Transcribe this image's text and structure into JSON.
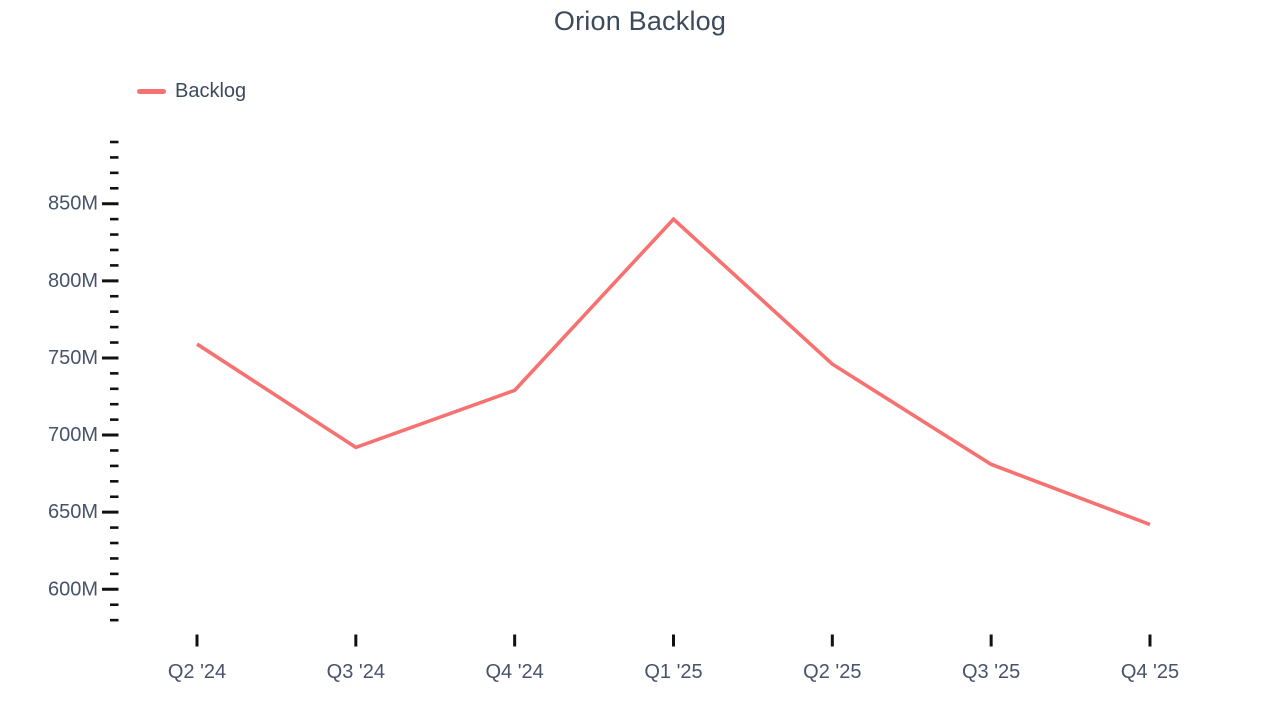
{
  "title": "Orion Backlog",
  "legend": {
    "items": [
      {
        "label": "Backlog",
        "color": "#F87171"
      }
    ]
  },
  "colors": {
    "line": "#F87171",
    "title_text": "#3D4A5E",
    "axis_text": "#47526B",
    "tick": "#111111",
    "background": "#FFFFFF"
  },
  "chart_data": {
    "type": "line",
    "title": "Orion Backlog",
    "categories": [
      "Q2 '24",
      "Q3 '24",
      "Q4 '24",
      "Q1 '25",
      "Q2 '25",
      "Q3 '25",
      "Q4 '25"
    ],
    "series": [
      {
        "name": "Backlog",
        "color": "#F87171",
        "values_millions": [
          759,
          692,
          729,
          840,
          746,
          681,
          642
        ]
      }
    ],
    "y_axis": {
      "unit": "M",
      "tick_labels": [
        "600M",
        "650M",
        "700M",
        "750M",
        "800M",
        "850M"
      ],
      "major_tick_step_millions": 50,
      "minor_tick_step_millions": 10,
      "major_label_range_millions": [
        600,
        850
      ],
      "range_millions": [
        580,
        890
      ]
    },
    "x_axis": {
      "tick_labels": [
        "Q2 '24",
        "Q3 '24",
        "Q4 '24",
        "Q1 '25",
        "Q2 '25",
        "Q3 '25",
        "Q4 '25"
      ]
    },
    "grid": "off",
    "markers": "none",
    "legend_position": "top-left",
    "ylim": [
      580,
      890
    ]
  }
}
